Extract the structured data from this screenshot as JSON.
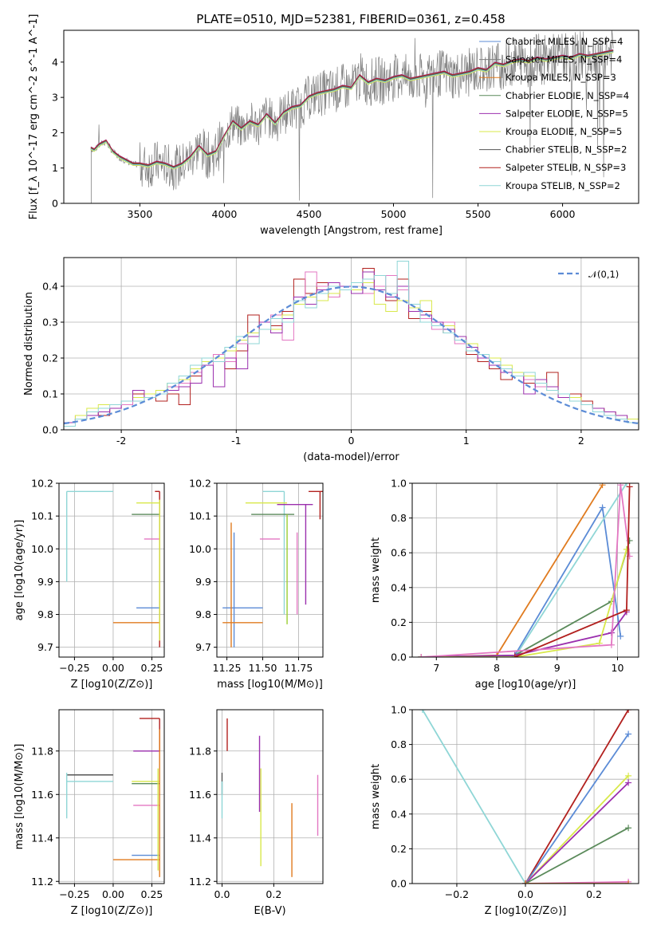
{
  "figure_title": "PLATE=0510, MJD=52381, FIBERID=0361, z=0.458",
  "colors": {
    "chabrier_miles": "#5b8bd6",
    "salpeter_miles": "#7f7f7f",
    "kroupa_miles": "#e07b1f",
    "chabrier_elodie": "#5a8a5a",
    "salpeter_elodie": "#9b2fae",
    "kroupa_elodie": "#d8e84a",
    "chabrier_stelib": "#555555",
    "salpeter_stelib": "#b2201e",
    "kroupa_stelib": "#8fd6d6",
    "pink": "#e377c2",
    "green_light": "#9acd32"
  },
  "chart_data": [
    {
      "id": "spectrum",
      "type": "line",
      "title": "",
      "xlabel": "wavelength [Angstrom, rest frame]",
      "ylabel": "Flux [f_λ 10^-17 erg cm^-2 s^-1 A^-1]",
      "xlim": [
        3050,
        6450
      ],
      "ylim": [
        0,
        4.9
      ],
      "xticks": [
        3500,
        4000,
        4500,
        5000,
        5500,
        6000
      ],
      "yticks": [
        0,
        1,
        2,
        3,
        4
      ],
      "legend": "top-right",
      "series": [
        {
          "name": "Chabrier MILES, N_SSP=4",
          "key": "chabrier_miles"
        },
        {
          "name": "Salpeter MILES, N_SSP=4",
          "key": "salpeter_miles"
        },
        {
          "name": "Kroupa MILES, N_SSP=3",
          "key": "kroupa_miles"
        },
        {
          "name": "Chabrier ELODIE, N_SSP=4",
          "key": "chabrier_elodie"
        },
        {
          "name": "Salpeter ELODIE, N_SSP=5",
          "key": "salpeter_elodie"
        },
        {
          "name": "Kroupa ELODIE, N_SSP=5",
          "key": "kroupa_elodie"
        },
        {
          "name": "Chabrier STELIB, N_SSP=2",
          "key": "chabrier_stelib"
        },
        {
          "name": "Salpeter STELIB, N_SSP=3",
          "key": "salpeter_stelib"
        },
        {
          "name": "Kroupa STELIB, N_SSP=2",
          "key": "kroupa_stelib"
        }
      ],
      "model_x": [
        3210,
        3230,
        3260,
        3300,
        3340,
        3380,
        3420,
        3460,
        3500,
        3550,
        3600,
        3650,
        3700,
        3750,
        3800,
        3850,
        3900,
        3950,
        4000,
        4050,
        4100,
        4150,
        4200,
        4250,
        4300,
        4350,
        4400,
        4450,
        4500,
        4550,
        4600,
        4650,
        4700,
        4750,
        4800,
        4850,
        4900,
        4950,
        5000,
        5050,
        5100,
        5150,
        5200,
        5250,
        5300,
        5350,
        5400,
        5450,
        5500,
        5550,
        5600,
        5650,
        5700,
        5750,
        5800,
        5850,
        5900,
        5950,
        6000,
        6050,
        6100,
        6150,
        6200,
        6250,
        6300
      ],
      "model_y": [
        1.55,
        1.5,
        1.65,
        1.75,
        1.45,
        1.3,
        1.2,
        1.1,
        1.1,
        1.05,
        1.15,
        1.1,
        1.0,
        1.1,
        1.3,
        1.6,
        1.35,
        1.45,
        1.9,
        2.3,
        2.1,
        2.3,
        2.2,
        2.5,
        2.25,
        2.55,
        2.7,
        2.75,
        3.0,
        3.1,
        3.15,
        3.2,
        3.3,
        3.25,
        3.6,
        3.4,
        3.5,
        3.45,
        3.55,
        3.6,
        3.5,
        3.55,
        3.6,
        3.65,
        3.7,
        3.6,
        3.65,
        3.7,
        3.8,
        3.75,
        3.95,
        3.9,
        4.0,
        4.05,
        4.0,
        4.1,
        4.05,
        4.1,
        4.15,
        4.1,
        4.2,
        4.15,
        4.2,
        4.25,
        4.3
      ]
    },
    {
      "id": "residuals",
      "type": "line",
      "xlabel": "(data-model)/error",
      "ylabel": "Normed distribution",
      "xlim": [
        -2.5,
        2.5
      ],
      "ylim": [
        0,
        0.48
      ],
      "xticks": [
        -2,
        -1,
        0,
        1,
        2
      ],
      "yticks": [
        0.0,
        0.1,
        0.2,
        0.3,
        0.4
      ],
      "legend": "top-right",
      "series": [
        {
          "name": "𝒩(0,1)",
          "style": "dashed",
          "color": "#5b8bd6"
        }
      ],
      "hist_bins": [
        -2.5,
        -2.4,
        -2.3,
        -2.2,
        -2.1,
        -2.0,
        -1.9,
        -1.8,
        -1.7,
        -1.6,
        -1.5,
        -1.4,
        -1.3,
        -1.2,
        -1.1,
        -1.0,
        -0.9,
        -0.8,
        -0.7,
        -0.6,
        -0.5,
        -0.4,
        -0.3,
        -0.2,
        -0.1,
        0.0,
        0.1,
        0.2,
        0.3,
        0.4,
        0.5,
        0.6,
        0.7,
        0.8,
        0.9,
        1.0,
        1.1,
        1.2,
        1.3,
        1.4,
        1.5,
        1.6,
        1.7,
        1.8,
        1.9,
        2.0,
        2.1,
        2.2,
        2.3,
        2.4,
        2.5
      ],
      "hist_series": [
        {
          "key": "salpeter_stelib",
          "values": [
            0.02,
            0.03,
            0.05,
            0.04,
            0.06,
            0.07,
            0.1,
            0.09,
            0.08,
            0.1,
            0.07,
            0.15,
            0.19,
            0.2,
            0.17,
            0.22,
            0.32,
            0.28,
            0.29,
            0.33,
            0.42,
            0.38,
            0.41,
            0.37,
            0.4,
            0.39,
            0.45,
            0.4,
            0.36,
            0.42,
            0.31,
            0.33,
            0.29,
            0.27,
            0.25,
            0.21,
            0.19,
            0.17,
            0.14,
            0.16,
            0.13,
            0.12,
            0.16,
            0.09,
            0.1,
            0.08,
            0.06,
            0.05,
            0.04,
            0.02
          ]
        },
        {
          "key": "pink",
          "values": [
            0.02,
            0.04,
            0.05,
            0.05,
            0.06,
            0.07,
            0.08,
            0.09,
            0.1,
            0.12,
            0.13,
            0.16,
            0.18,
            0.21,
            0.19,
            0.24,
            0.26,
            0.3,
            0.32,
            0.25,
            0.35,
            0.44,
            0.4,
            0.37,
            0.39,
            0.41,
            0.38,
            0.4,
            0.43,
            0.39,
            0.34,
            0.31,
            0.28,
            0.3,
            0.24,
            0.23,
            0.2,
            0.18,
            0.17,
            0.15,
            0.14,
            0.12,
            0.11,
            0.09,
            0.08,
            0.07,
            0.06,
            0.04,
            0.03,
            0.02
          ]
        },
        {
          "key": "kroupa_elodie",
          "values": [
            0.02,
            0.04,
            0.06,
            0.07,
            0.07,
            0.08,
            0.09,
            0.1,
            0.11,
            0.13,
            0.14,
            0.17,
            0.19,
            0.2,
            0.22,
            0.25,
            0.27,
            0.3,
            0.28,
            0.32,
            0.35,
            0.37,
            0.36,
            0.38,
            0.4,
            0.39,
            0.41,
            0.35,
            0.33,
            0.36,
            0.34,
            0.36,
            0.3,
            0.29,
            0.26,
            0.24,
            0.21,
            0.2,
            0.18,
            0.16,
            0.15,
            0.14,
            0.12,
            0.1,
            0.09,
            0.07,
            0.06,
            0.05,
            0.04,
            0.03
          ]
        },
        {
          "key": "salpeter_elodie",
          "values": [
            0.02,
            0.03,
            0.04,
            0.05,
            0.06,
            0.08,
            0.11,
            0.09,
            0.1,
            0.11,
            0.12,
            0.13,
            0.18,
            0.12,
            0.2,
            0.17,
            0.26,
            0.3,
            0.27,
            0.31,
            0.37,
            0.35,
            0.39,
            0.41,
            0.4,
            0.38,
            0.44,
            0.39,
            0.37,
            0.4,
            0.33,
            0.32,
            0.3,
            0.28,
            0.26,
            0.23,
            0.2,
            0.18,
            0.16,
            0.15,
            0.1,
            0.14,
            0.12,
            0.09,
            0.08,
            0.07,
            0.06,
            0.05,
            0.04,
            0.02
          ]
        },
        {
          "key": "kroupa_stelib",
          "values": [
            0.01,
            0.03,
            0.05,
            0.06,
            0.07,
            0.08,
            0.08,
            0.09,
            0.1,
            0.13,
            0.15,
            0.18,
            0.2,
            0.19,
            0.23,
            0.26,
            0.24,
            0.28,
            0.31,
            0.3,
            0.36,
            0.34,
            0.38,
            0.4,
            0.39,
            0.41,
            0.42,
            0.43,
            0.38,
            0.47,
            0.35,
            0.3,
            0.29,
            0.27,
            0.25,
            0.22,
            0.21,
            0.19,
            0.17,
            0.15,
            0.16,
            0.13,
            0.11,
            0.1,
            0.08,
            0.07,
            0.05,
            0.04,
            0.03,
            0.02
          ]
        }
      ]
    },
    {
      "id": "age_vs_Z",
      "type": "scatter",
      "xlabel": "Z [log10(Z/Z⊙)]",
      "ylabel": "age  [log10(age/yr)]",
      "xlim": [
        -0.35,
        0.33
      ],
      "ylim": [
        9.67,
        10.2
      ],
      "xticks": [
        -0.25,
        0.0,
        0.25
      ],
      "xtick_labels": [
        "−0.25",
        "0.00",
        "0.25"
      ],
      "yticks": [
        9.7,
        9.8,
        9.9,
        10.0,
        10.1,
        10.2
      ]
    },
    {
      "id": "age_vs_mass",
      "type": "scatter",
      "xlabel": "mass [log10(M/M⊙)]",
      "ylabel": "",
      "xlim": [
        11.18,
        11.92
      ],
      "ylim": [
        9.67,
        10.2
      ],
      "xticks": [
        11.25,
        11.5,
        11.75
      ],
      "xtick_labels": [
        "11.25",
        "11.50",
        "11.75"
      ],
      "yticks": [
        9.7,
        9.8,
        9.9,
        10.0,
        10.1,
        10.2
      ]
    },
    {
      "id": "mass_weight_vs_age",
      "type": "line",
      "xlabel": "age  [log10(age/yr)]",
      "ylabel": "mass weight",
      "xlim": [
        6.6,
        10.35
      ],
      "ylim": [
        0,
        1.0
      ],
      "xticks": [
        7,
        8,
        9,
        10
      ],
      "yticks": [
        0.0,
        0.2,
        0.4,
        0.6,
        0.8,
        1.0
      ],
      "series": [
        {
          "key": "kroupa_miles",
          "x": [
            6.75,
            8.0,
            9.75
          ],
          "y": [
            0.0,
            0.01,
            0.99
          ]
        },
        {
          "key": "chabrier_miles",
          "x": [
            6.75,
            8.3,
            9.75,
            10.05
          ],
          "y": [
            0.0,
            0.01,
            0.86,
            0.12
          ]
        },
        {
          "key": "kroupa_stelib",
          "x": [
            8.3,
            10.15
          ],
          "y": [
            0.0,
            1.0
          ]
        },
        {
          "key": "chabrier_elodie",
          "x": [
            6.75,
            8.3,
            9.9,
            10.2
          ],
          "y": [
            0.0,
            0.01,
            0.32,
            0.67
          ]
        },
        {
          "key": "salpeter_elodie",
          "x": [
            6.75,
            8.3,
            9.9,
            10.15
          ],
          "y": [
            0.0,
            0.01,
            0.14,
            0.26
          ]
        },
        {
          "key": "kroupa_elodie",
          "x": [
            6.75,
            8.3,
            9.7,
            10.15
          ],
          "y": [
            0.0,
            0.0,
            0.08,
            0.62
          ]
        },
        {
          "key": "pink",
          "x": [
            6.75,
            9.9,
            10.05,
            10.2
          ],
          "y": [
            0.0,
            0.07,
            0.99,
            0.58
          ]
        },
        {
          "key": "salpeter_stelib",
          "x": [
            8.3,
            10.15,
            10.2
          ],
          "y": [
            0.0,
            0.27,
            0.98
          ]
        }
      ]
    },
    {
      "id": "mass_vs_Z",
      "type": "scatter",
      "xlabel": "Z [log10(Z/Z⊙)]",
      "ylabel": "mass [log10(M/M⊙)]",
      "xlim": [
        -0.35,
        0.33
      ],
      "ylim": [
        11.19,
        11.99
      ],
      "xticks": [
        -0.25,
        0.0,
        0.25
      ],
      "xtick_labels": [
        "−0.25",
        "0.00",
        "0.25"
      ],
      "yticks": [
        11.2,
        11.4,
        11.6,
        11.8
      ]
    },
    {
      "id": "mass_vs_EBV",
      "type": "scatter",
      "xlabel": "E(B-V)",
      "ylabel": "",
      "xlim": [
        -0.02,
        0.39
      ],
      "ylim": [
        11.19,
        11.99
      ],
      "xticks": [
        0.0,
        0.2
      ],
      "xtick_labels": [
        "0.0",
        "0.2"
      ],
      "yticks": [
        11.2,
        11.4,
        11.6,
        11.8
      ]
    },
    {
      "id": "mass_weight_vs_Z",
      "type": "line",
      "xlabel": "Z [log10(Z/Z⊙)]",
      "ylabel": "mass weight",
      "xlim": [
        -0.33,
        0.33
      ],
      "ylim": [
        0,
        1.0
      ],
      "xticks": [
        -0.2,
        0.0,
        0.2
      ],
      "xtick_labels": [
        "−0.2",
        "0.0",
        "0.2"
      ],
      "yticks": [
        0.0,
        0.2,
        0.4,
        0.6,
        0.8,
        1.0
      ],
      "series": [
        {
          "key": "kroupa_stelib",
          "x": [
            -0.3,
            0.0
          ],
          "y": [
            1.0,
            0.0
          ]
        },
        {
          "key": "salpeter_stelib",
          "x": [
            0.0,
            0.3
          ],
          "y": [
            0.0,
            1.0
          ]
        },
        {
          "key": "chabrier_miles",
          "x": [
            0.0,
            0.3
          ],
          "y": [
            0.0,
            0.86
          ]
        },
        {
          "key": "kroupa_elodie",
          "x": [
            0.0,
            0.3
          ],
          "y": [
            0.0,
            0.62
          ]
        },
        {
          "key": "salpeter_elodie",
          "x": [
            0.0,
            0.3
          ],
          "y": [
            0.0,
            0.58
          ]
        },
        {
          "key": "chabrier_elodie",
          "x": [
            0.0,
            0.3
          ],
          "y": [
            0.0,
            0.32
          ]
        },
        {
          "key": "pink",
          "x": [
            0.0,
            0.3
          ],
          "y": [
            0.0,
            0.01
          ]
        },
        {
          "key": "kroupa_miles",
          "x": [
            0.0,
            0.3
          ],
          "y": [
            0.0,
            0.0
          ]
        }
      ]
    }
  ]
}
